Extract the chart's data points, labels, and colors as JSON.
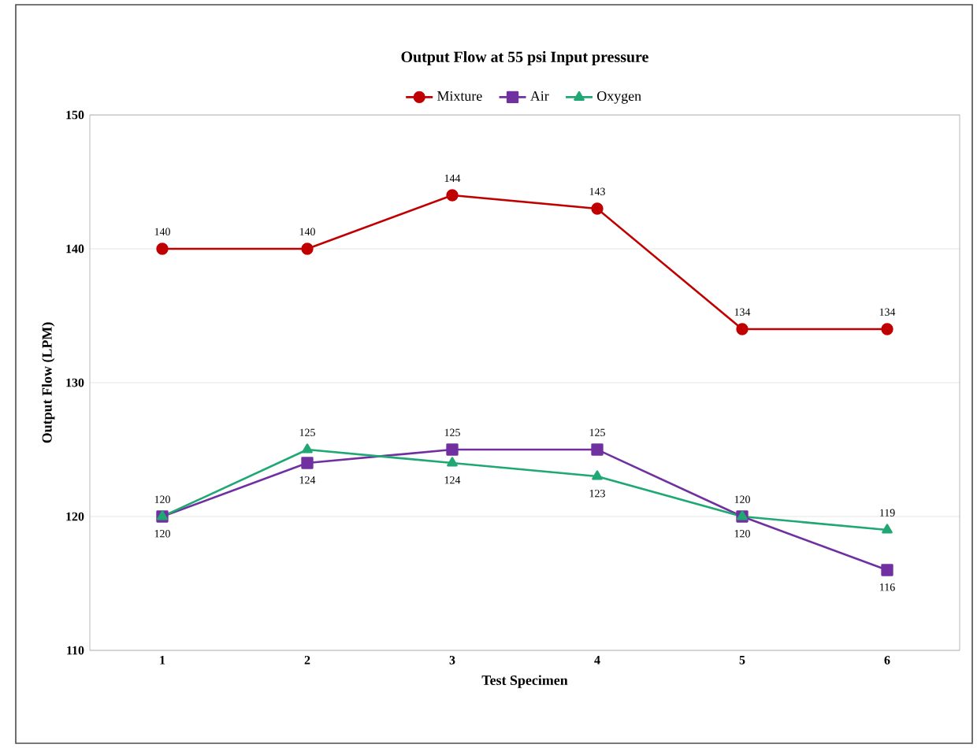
{
  "chart_data": {
    "type": "line",
    "title": "Output Flow at 55 psi Input pressure",
    "xlabel": "Test Specimen",
    "ylabel": "Output Flow (LPM)",
    "categories": [
      "1",
      "2",
      "3",
      "4",
      "5",
      "6"
    ],
    "series": [
      {
        "name": "Mixture",
        "color": "#c00000",
        "marker": "circle",
        "values": [
          140,
          140,
          144,
          143,
          134,
          134
        ]
      },
      {
        "name": "Air",
        "color": "#7030a0",
        "marker": "square",
        "values": [
          120,
          124,
          125,
          125,
          120,
          116
        ]
      },
      {
        "name": "Oxygen",
        "color": "#1fa874",
        "marker": "triangle",
        "values": [
          120,
          125,
          124,
          123,
          120,
          119
        ]
      }
    ],
    "ylim": [
      110,
      150
    ],
    "yticks": [
      110,
      120,
      130,
      140,
      150
    ],
    "grid": "y",
    "legend": "top",
    "data_labels": true,
    "line_style": "solid"
  }
}
